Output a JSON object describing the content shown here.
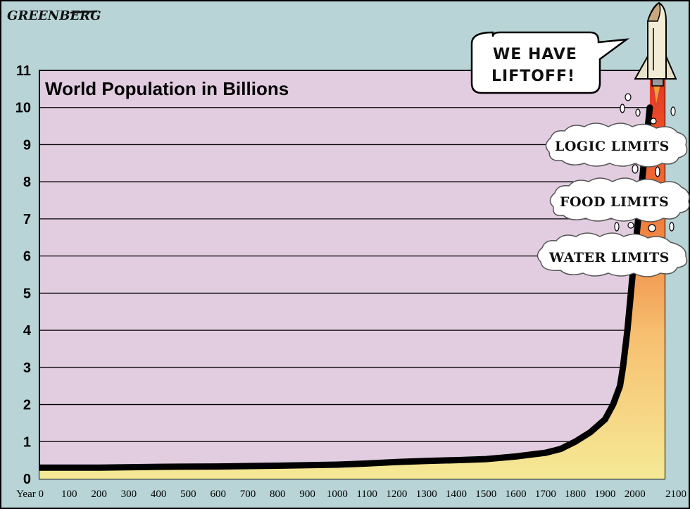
{
  "signature": "GREENBERG",
  "speech_bubble": {
    "line1": "WE HAVE",
    "line2": "LIFTOFF!"
  },
  "limits": [
    "LOGIC LIMITS",
    "FOOD LIMITS",
    "WATER LIMITS"
  ],
  "colors": {
    "background": "#b8d4d6",
    "plot_area": "#e2cde0",
    "fill_low": "#f5e996",
    "fill_high": "#e8301e",
    "curve": "#000000"
  },
  "icons": [
    "rocket-icon",
    "cloud-icon"
  ],
  "chart_data": {
    "type": "area",
    "title": "World Population in Billions",
    "xlabel": "",
    "ylabel": "",
    "x_tick_labels": [
      "Year 0",
      "100",
      "200",
      "300",
      "400",
      "500",
      "600",
      "700",
      "800",
      "900",
      "1000",
      "1100",
      "1200",
      "1300",
      "1400",
      "1500",
      "1600",
      "1700",
      "1800",
      "1900",
      "2000",
      "2100"
    ],
    "y_tick_labels": [
      "0",
      "1",
      "2",
      "3",
      "4",
      "5",
      "6",
      "7",
      "8",
      "9",
      "10",
      "11"
    ],
    "xlim": [
      0,
      2100
    ],
    "ylim": [
      0,
      11
    ],
    "grid": true,
    "series": [
      {
        "x": [
          0,
          200,
          400,
          600,
          800,
          1000,
          1100,
          1200,
          1300,
          1400,
          1500,
          1600,
          1700,
          1750,
          1800,
          1850,
          1900,
          1927,
          1950,
          1960,
          1975,
          1990,
          2000,
          2010,
          2020,
          2030,
          2040,
          2050
        ],
        "y": [
          0.3,
          0.3,
          0.32,
          0.33,
          0.35,
          0.38,
          0.41,
          0.45,
          0.48,
          0.5,
          0.53,
          0.6,
          0.7,
          0.8,
          1.0,
          1.25,
          1.6,
          2.0,
          2.5,
          3.0,
          4.0,
          5.3,
          6.1,
          6.9,
          7.7,
          8.5,
          9.2,
          10.0
        ]
      }
    ]
  }
}
